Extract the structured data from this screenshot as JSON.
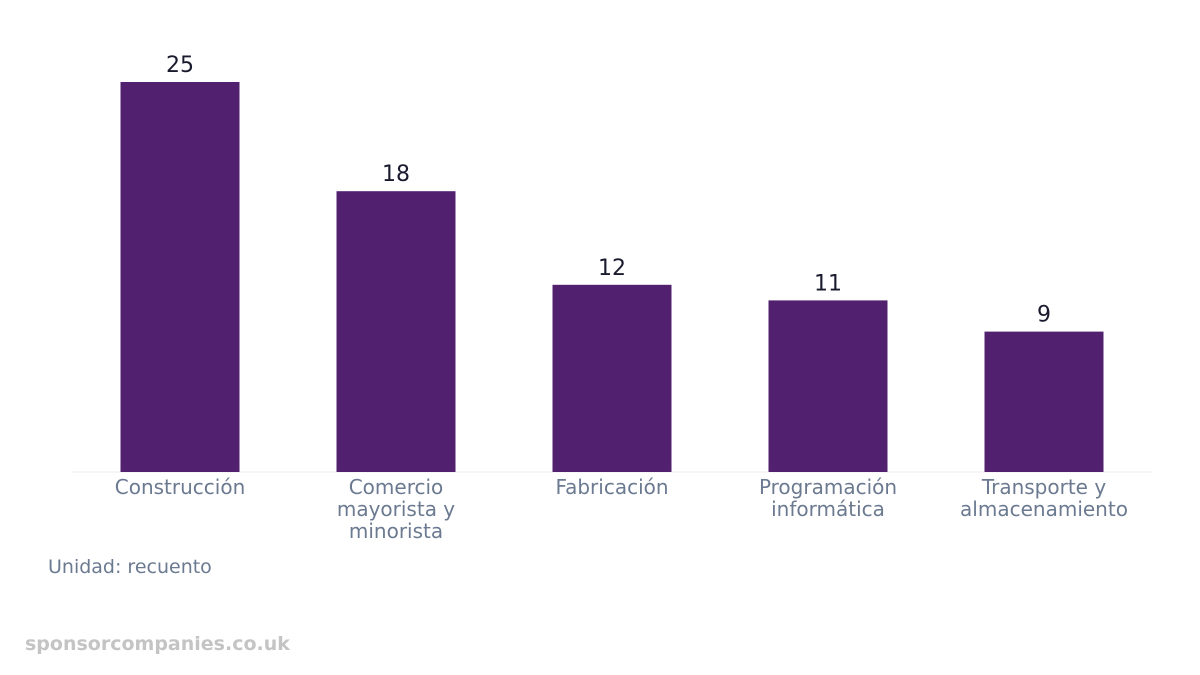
{
  "chart_data": {
    "type": "bar",
    "categories": [
      [
        "Construcción"
      ],
      [
        "Comercio",
        "mayorista y",
        "minorista"
      ],
      [
        "Fabricación"
      ],
      [
        "Programación",
        "informática"
      ],
      [
        "Transporte y",
        "almacenamiento"
      ]
    ],
    "values": [
      25,
      18,
      12,
      11,
      9
    ],
    "bar_color": "#51206f",
    "ylim": [
      0,
      25
    ],
    "grid": false,
    "legend": "none"
  },
  "unit_note": "Unidad: recuento",
  "watermark": "sponsorcompanies.co.uk",
  "colors": {
    "bar": "#51206f",
    "label": "#1a1a2e",
    "tick": "#6b7a90",
    "watermark": "#c4c4c4"
  }
}
